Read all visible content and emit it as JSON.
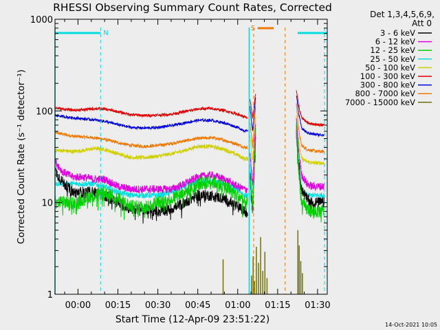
{
  "colors": {
    "background": "#ededed",
    "axis": "#000000",
    "bands": [
      "#000000",
      "#e000e0",
      "#00d000",
      "#00e0e0",
      "#d0d000",
      "#e00000",
      "#0000e0",
      "#f07800",
      "#707000"
    ],
    "night_marker": "#00e0e0",
    "saa_marker": "#f07800"
  },
  "chart_data": {
    "type": "line",
    "title": "RHESSI Observing Summary Count Rates, Corrected",
    "xlabel": "Start Time (12-Apr-09 23:51:22)",
    "ylabel": "Corrected Count Rate (s⁻¹ detector⁻¹)",
    "yscale": "log",
    "ylim": [
      1,
      1000
    ],
    "xlim_minutes": [
      -8.633,
      93.633
    ],
    "x_ticks": [
      {
        "minute": 0,
        "label": "00:00"
      },
      {
        "minute": 15,
        "label": "00:15"
      },
      {
        "minute": 30,
        "label": "00:30"
      },
      {
        "minute": 45,
        "label": "00:45"
      },
      {
        "minute": 60,
        "label": "01:00"
      },
      {
        "minute": 75,
        "label": "01:15"
      },
      {
        "minute": 90,
        "label": "01:30"
      }
    ],
    "y_ticks": [
      {
        "value": 1,
        "label": "1"
      },
      {
        "value": 10,
        "label": "10"
      },
      {
        "value": 100,
        "label": "100"
      },
      {
        "value": 1000,
        "label": "1000"
      }
    ],
    "legend": {
      "header_lines": [
        "Det 1,3,4,5,6,9,",
        "Att 0"
      ],
      "position": "right"
    },
    "series": [
      {
        "name": "3 - 6 keV",
        "segments": [
          {
            "x": [
              -8.5,
              -6,
              -2,
              2,
              6,
              10,
              15,
              20,
              25,
              30,
              35,
              40,
              45,
              50,
              55,
              60,
              62.5,
              63.8
            ],
            "y": [
              22,
              17,
              13,
              13,
              13,
              12,
              10,
              8.5,
              8.5,
              8,
              8.5,
              10,
              12,
              12,
              11,
              9,
              8,
              7.5
            ]
          },
          {
            "x": [
              64.6,
              65.6,
              66.8
            ],
            "y": [
              20,
              8,
              60
            ]
          },
          {
            "x": [
              82,
              83,
              84,
              86,
              88,
              90,
              92.5
            ],
            "y": [
              60,
              25,
              14,
              11,
              10,
              10,
              10
            ]
          }
        ]
      },
      {
        "name": "6 - 12 keV",
        "segments": [
          {
            "x": [
              -8.5,
              -6,
              -2,
              2,
              6,
              10,
              15,
              20,
              25,
              30,
              35,
              40,
              45,
              50,
              55,
              60,
              62.5,
              63.8
            ],
            "y": [
              28,
              22,
              19,
              19,
              18,
              18,
              15,
              14,
              14,
              14,
              14,
              16,
              19,
              20,
              18,
              15,
              14,
              14
            ]
          },
          {
            "x": [
              64.6,
              65.6,
              66.8
            ],
            "y": [
              35,
              15,
              80
            ]
          },
          {
            "x": [
              82,
              83,
              84,
              86,
              88,
              90,
              92.5
            ],
            "y": [
              80,
              35,
              20,
              16,
              15,
              15,
              15
            ]
          }
        ]
      },
      {
        "name": "12 - 25 keV",
        "segments": [
          {
            "x": [
              -8.5,
              -6,
              -2,
              2,
              6,
              10,
              15,
              20,
              25,
              30,
              35,
              40,
              45,
              50,
              55,
              60,
              62.5,
              63.8
            ],
            "y": [
              10,
              10,
              10,
              11,
              12,
              13,
              11,
              9,
              9,
              10,
              11,
              13,
              16,
              17,
              15,
              12,
              10,
              10
            ]
          },
          {
            "x": [
              64.6,
              65.6,
              66.8
            ],
            "y": [
              18,
              9,
              60
            ]
          },
          {
            "x": [
              82,
              83,
              84,
              86,
              88,
              90,
              92.5
            ],
            "y": [
              60,
              20,
              10,
              8.5,
              8,
              8,
              8
            ]
          }
        ]
      },
      {
        "name": "25 - 50 keV",
        "segments": [
          {
            "x": [
              -8.5,
              -6,
              -2,
              2,
              6,
              10,
              15,
              20,
              25,
              30,
              35,
              40,
              45,
              50,
              55,
              60,
              62.5,
              63.8
            ],
            "y": [
              16,
              16,
              16,
              16,
              16,
              15,
              13,
              12,
              12,
              12,
              13,
              15,
              17,
              17,
              16,
              14,
              12,
              12
            ]
          },
          {
            "x": [
              64.6,
              65.6,
              66.8
            ],
            "y": [
              25,
              12,
              70
            ]
          },
          {
            "x": [
              82,
              83,
              84,
              86,
              88,
              90,
              92.5
            ],
            "y": [
              70,
              25,
              14,
              12,
              12,
              12,
              12
            ]
          }
        ]
      },
      {
        "name": "50 - 100 keV",
        "segments": [
          {
            "x": [
              -8.5,
              -6,
              -2,
              2,
              6,
              10,
              15,
              20,
              25,
              30,
              35,
              40,
              45,
              50,
              55,
              60,
              62.5,
              63.8
            ],
            "y": [
              37,
              37,
              36,
              37,
              39,
              38,
              34,
              31,
              31,
              32,
              34,
              37,
              41,
              41,
              38,
              33,
              30,
              30
            ]
          },
          {
            "x": [
              64.6,
              65.6,
              66.8
            ],
            "y": [
              55,
              28,
              90
            ]
          },
          {
            "x": [
              82,
              83,
              84,
              86,
              88,
              90,
              92.5
            ],
            "y": [
              90,
              45,
              30,
              28,
              27,
              27,
              27
            ]
          }
        ]
      },
      {
        "name": "100 - 300 keV",
        "segments": [
          {
            "x": [
              -8.5,
              -6,
              -2,
              2,
              6,
              10,
              15,
              20,
              25,
              30,
              35,
              40,
              45,
              50,
              55,
              60,
              62.5,
              63.8
            ],
            "y": [
              108,
              105,
              102,
              103,
              106,
              105,
              98,
              91,
              89,
              90,
              92,
              98,
              105,
              106,
              101,
              92,
              86,
              84
            ]
          },
          {
            "x": [
              64.6,
              65.6,
              66.8
            ],
            "y": [
              130,
              85,
              160
            ]
          },
          {
            "x": [
              82,
              83,
              84,
              86,
              88,
              90,
              92.5
            ],
            "y": [
              170,
              110,
              85,
              75,
              72,
              71,
              70
            ]
          }
        ]
      },
      {
        "name": "300 - 800 keV",
        "segments": [
          {
            "x": [
              -8.5,
              -6,
              -2,
              2,
              6,
              10,
              15,
              20,
              25,
              30,
              35,
              40,
              45,
              50,
              55,
              60,
              62.5,
              63.8
            ],
            "y": [
              90,
              87,
              84,
              82,
              80,
              77,
              71,
              66,
              65,
              66,
              69,
              74,
              79,
              79,
              74,
              66,
              61,
              60
            ]
          },
          {
            "x": [
              64.6,
              65.6,
              66.8
            ],
            "y": [
              110,
              60,
              150
            ]
          },
          {
            "x": [
              82,
              83,
              84,
              86,
              88,
              90,
              92.5
            ],
            "y": [
              150,
              90,
              65,
              58,
              56,
              55,
              55
            ]
          }
        ]
      },
      {
        "name": "800 - 7000 keV",
        "segments": [
          {
            "x": [
              -8.5,
              -6,
              -2,
              2,
              6,
              10,
              15,
              20,
              25,
              30,
              35,
              40,
              45,
              50,
              55,
              60,
              62.5,
              63.8
            ],
            "y": [
              58,
              56,
              53,
              52,
              51,
              49,
              45,
              42,
              41,
              42,
              44,
              47,
              50,
              51,
              48,
              43,
              40,
              40
            ]
          },
          {
            "x": [
              64.6,
              65.6,
              66.8
            ],
            "y": [
              75,
              40,
              120
            ]
          },
          {
            "x": [
              82,
              83,
              84,
              86,
              88,
              90,
              92.5
            ],
            "y": [
              120,
              60,
              42,
              38,
              37,
              36,
              36
            ]
          }
        ]
      },
      {
        "name": "7000 - 15000 keV",
        "spikes": [
          {
            "x": 54.5,
            "y": 2.4
          },
          {
            "x": 65.2,
            "y": 1.6
          },
          {
            "x": 65.8,
            "y": 2.6
          },
          {
            "x": 66.3,
            "y": 1.4
          },
          {
            "x": 67.0,
            "y": 3.3
          },
          {
            "x": 67.8,
            "y": 2.2
          },
          {
            "x": 68.6,
            "y": 4.2
          },
          {
            "x": 69.4,
            "y": 1.8
          },
          {
            "x": 70.2,
            "y": 2.9
          },
          {
            "x": 71.0,
            "y": 1.5
          },
          {
            "x": 82.6,
            "y": 5.0
          },
          {
            "x": 83.1,
            "y": 3.4
          },
          {
            "x": 83.7,
            "y": 2.3
          },
          {
            "x": 84.3,
            "y": 1.7
          }
        ]
      }
    ],
    "annotations": [
      {
        "kind": "night",
        "label": "N",
        "bar_x": [
          -8.633,
          8.5
        ],
        "line_x": [
          -8.633,
          8.5
        ]
      },
      {
        "kind": "night",
        "label": "",
        "bar_x": [
          82.5,
          93.633
        ],
        "line_x": [
          64.3,
          92.6
        ]
      },
      {
        "kind": "saa",
        "label": "S",
        "bar_x": [
          67.5,
          73.5
        ],
        "line_x": [
          66.0,
          77.8
        ]
      }
    ]
  },
  "footer": {
    "timestamp": "14-Oct-2021 10:05"
  }
}
